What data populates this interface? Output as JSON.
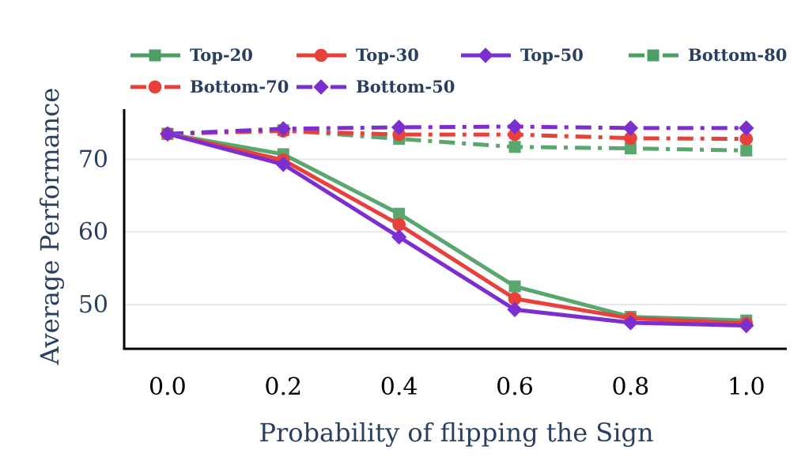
{
  "chart_data": {
    "type": "line",
    "xlabel": "Probability of flipping the Sign",
    "ylabel": "Average Performance",
    "x": [
      0.0,
      0.2,
      0.4,
      0.6,
      0.8,
      1.0
    ],
    "x_tick_labels": [
      "0.0",
      "0.2",
      "0.4",
      "0.6",
      "0.8",
      "1.0"
    ],
    "y_ticks": [
      50,
      60,
      70
    ],
    "y_tick_labels": [
      "50",
      "60",
      "70"
    ],
    "xlim": [
      -0.075,
      1.07
    ],
    "ylim": [
      43.9,
      76.9
    ],
    "grid": "horizontal",
    "legend_position": "top",
    "series": [
      {
        "name": "Top-20",
        "color": "#4c9f63",
        "dash": "solid",
        "marker": "square",
        "values": [
          73.5,
          70.7,
          62.5,
          52.5,
          48.3,
          47.8
        ]
      },
      {
        "name": "Top-30",
        "color": "#e8403b",
        "dash": "solid",
        "marker": "circle",
        "values": [
          73.5,
          69.9,
          61.0,
          50.8,
          48.1,
          47.4
        ]
      },
      {
        "name": "Top-50",
        "color": "#7b2fd0",
        "dash": "solid",
        "marker": "diamond",
        "values": [
          73.5,
          69.3,
          59.3,
          49.3,
          47.5,
          47.1
        ]
      },
      {
        "name": "Bottom-80",
        "color": "#4c9f63",
        "dash": "dashdot",
        "marker": "square",
        "values": [
          73.5,
          74.0,
          72.8,
          71.7,
          71.5,
          71.2
        ]
      },
      {
        "name": "Bottom-70",
        "color": "#e8403b",
        "dash": "dashdot",
        "marker": "circle",
        "values": [
          73.5,
          73.9,
          73.4,
          73.4,
          72.9,
          72.8
        ]
      },
      {
        "name": "Bottom-50",
        "color": "#7b2fd0",
        "dash": "dashdot",
        "marker": "diamond",
        "values": [
          73.5,
          74.2,
          74.4,
          74.5,
          74.3,
          74.3
        ]
      }
    ]
  }
}
